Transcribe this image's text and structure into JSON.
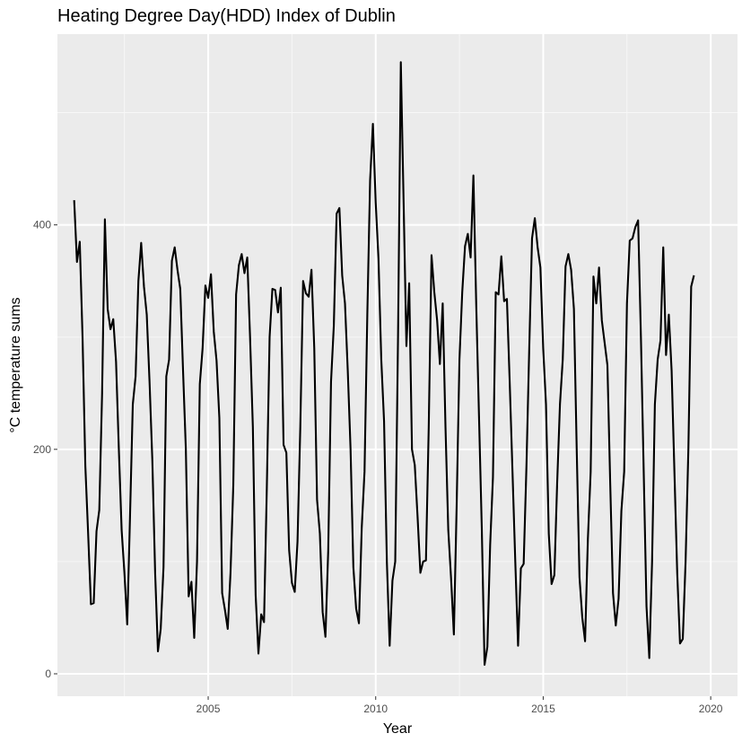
{
  "chart_data": {
    "type": "line",
    "title": "Heating Degree Day(HDD) Index of Dublin",
    "xlabel": "Year",
    "ylabel": "°C temperature sums",
    "x_ticks": [
      "2005",
      "2010",
      "2015",
      "2020"
    ],
    "x_tick_values": [
      2005,
      2010,
      2015,
      2020
    ],
    "y_ticks": [
      "0",
      "200",
      "400"
    ],
    "y_tick_values": [
      0,
      200,
      400
    ],
    "xlim": [
      2000.5,
      2020.8
    ],
    "ylim": [
      -20,
      570
    ],
    "grid": true,
    "background_color": "#ebebeb",
    "line_color": "#000000",
    "series": [
      {
        "name": "HDD",
        "start_year": 2001,
        "values": [
          422,
          367,
          385,
          300,
          185,
          125,
          62,
          63,
          127,
          146,
          250,
          405,
          325,
          307,
          316,
          278,
          200,
          128,
          90,
          44,
          140,
          240,
          265,
          350,
          384,
          345,
          320,
          260,
          190,
          90,
          20,
          40,
          95,
          265,
          280,
          368,
          380,
          360,
          343,
          270,
          200,
          69,
          82,
          32,
          100,
          258,
          290,
          346,
          335,
          356,
          305,
          279,
          228,
          72,
          57,
          40,
          90,
          168,
          338,
          364,
          374,
          357,
          371,
          300,
          220,
          70,
          18,
          53,
          46,
          165,
          300,
          343,
          342,
          322,
          344,
          204,
          197,
          110,
          81,
          73,
          118,
          220,
          350,
          339,
          336,
          360,
          290,
          155,
          125,
          55,
          33,
          110,
          260,
          310,
          410,
          415,
          355,
          330,
          270,
          200,
          95,
          58,
          45,
          130,
          180,
          320,
          440,
          490,
          420,
          370,
          280,
          225,
          100,
          25,
          83,
          100,
          300,
          545,
          420,
          292,
          348,
          200,
          186,
          140,
          90,
          100,
          101,
          220,
          373,
          340,
          315,
          276,
          330,
          220,
          128,
          85,
          35,
          150,
          280,
          340,
          381,
          392,
          371,
          444,
          330,
          230,
          130,
          8,
          24,
          115,
          175,
          340,
          338,
          372,
          332,
          334,
          260,
          180,
          100,
          25,
          94,
          98,
          185,
          290,
          388,
          406,
          380,
          362,
          290,
          240,
          125,
          80,
          88,
          170,
          240,
          280,
          363,
          374,
          360,
          325,
          200,
          86,
          50,
          29,
          120,
          180,
          354,
          330,
          362,
          315,
          295,
          275,
          170,
          72,
          43,
          67,
          145,
          180,
          330,
          386,
          388,
          398,
          404,
          300,
          180,
          60,
          14,
          100,
          240,
          280,
          297,
          380,
          284,
          320,
          270,
          180,
          90,
          27,
          31,
          100,
          200,
          345,
          355
        ]
      }
    ]
  }
}
